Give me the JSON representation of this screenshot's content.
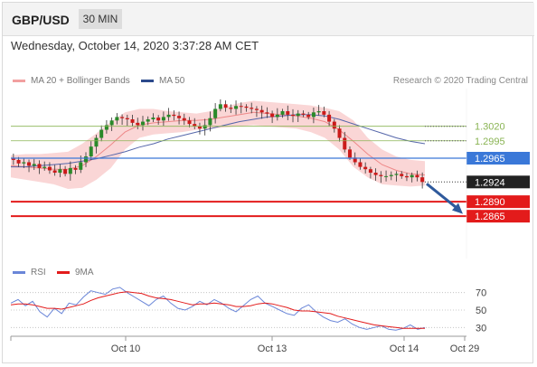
{
  "header": {
    "symbol": "GBP/USD",
    "timeframe": "30 MIN"
  },
  "timestamp": "Wednesday, October 14, 2020 3:37:28 AM CET",
  "legend": {
    "bb_label": "MA 20 + Bollinger Bands",
    "ma50_label": "MA 50",
    "rsi_label": "RSI",
    "rsi_ma_label": "9MA",
    "credit": "Research © 2020 Trading Central"
  },
  "colors": {
    "up": "#2a8a2a",
    "down": "#cc1a1a",
    "band": "#f8c8c8",
    "ma20": "#e88",
    "ma50": "#5566aa",
    "pivot": "#3a78d8",
    "support": "#e31b1b",
    "resistance": "#8ab454",
    "current": "#222222"
  },
  "chart_data": [
    {
      "type": "line",
      "title": "",
      "x_ticks": [
        "Oct 10",
        "Oct 13",
        "Oct 14",
        "Oct 29"
      ],
      "ylim": [
        1.2845,
        1.3085
      ],
      "price_path": [
        1.2962,
        1.2956,
        1.2958,
        1.2952,
        1.2955,
        1.2948,
        1.295,
        1.2944,
        1.294,
        1.2946,
        1.2938,
        1.2948,
        1.2945,
        1.2958,
        1.2968,
        1.2985,
        1.3,
        1.3014,
        1.3022,
        1.303,
        1.3036,
        1.3034,
        1.3032,
        1.3026,
        1.3022,
        1.3028,
        1.3032,
        1.3035,
        1.303,
        1.3036,
        1.304,
        1.3038,
        1.3034,
        1.303,
        1.3024,
        1.302,
        1.3016,
        1.3022,
        1.3034,
        1.305,
        1.3058,
        1.3052,
        1.305,
        1.3055,
        1.3054,
        1.3052,
        1.305,
        1.3048,
        1.3044,
        1.3042,
        1.3036,
        1.304,
        1.3046,
        1.304,
        1.3038,
        1.3042,
        1.304,
        1.3036,
        1.3044,
        1.3046,
        1.304,
        1.3028,
        1.3016,
        1.3,
        1.298,
        1.2966,
        1.2958,
        1.295,
        1.2946,
        1.294,
        1.2936,
        1.2934,
        1.2934,
        1.2936,
        1.2938,
        1.2934,
        1.2932,
        1.2936,
        1.2932,
        1.2924
      ],
      "bb_upper": [
        1.297,
        1.2972,
        1.2972,
        1.2974,
        1.2976,
        1.299,
        1.3008,
        1.3028,
        1.3044,
        1.305,
        1.305,
        1.3046,
        1.3044,
        1.3042,
        1.3046,
        1.3054,
        1.306,
        1.3064,
        1.3062,
        1.306,
        1.3058,
        1.3056,
        1.3052,
        1.3046,
        1.303,
        1.3,
        1.298,
        1.2968,
        1.2962,
        1.296
      ],
      "bb_lower": [
        1.2932,
        1.2928,
        1.2924,
        1.292,
        1.2912,
        1.2914,
        1.2928,
        1.2948,
        1.298,
        1.3,
        1.3006,
        1.3008,
        1.301,
        1.3014,
        1.3016,
        1.3018,
        1.302,
        1.3022,
        1.302,
        1.3018,
        1.3016,
        1.301,
        1.3,
        1.298,
        1.295,
        1.2932,
        1.292,
        1.2918,
        1.2916,
        1.2918
      ],
      "ma20": [
        1.2952,
        1.295,
        1.2948,
        1.2946,
        1.2946,
        1.2952,
        1.2968,
        1.2988,
        1.301,
        1.3022,
        1.3026,
        1.3028,
        1.303,
        1.303,
        1.3032,
        1.3036,
        1.304,
        1.3044,
        1.3042,
        1.304,
        1.3038,
        1.3034,
        1.3028,
        1.3014,
        1.2994,
        1.2972,
        1.2954,
        1.2944,
        1.2938,
        1.2936
      ],
      "ma50": [
        1.295,
        1.295,
        1.2952,
        1.2954,
        1.2956,
        1.296,
        1.2964,
        1.297,
        1.2976,
        1.2984,
        1.299,
        1.2998,
        1.3004,
        1.301,
        1.3016,
        1.3022,
        1.3028,
        1.3032,
        1.3036,
        1.3038,
        1.304,
        1.304,
        1.3038,
        1.3032,
        1.3024,
        1.3016,
        1.3008,
        1.3,
        1.2994,
        1.299
      ],
      "levels": [
        {
          "value": "1.3020",
          "kind": "resistance"
        },
        {
          "value": "1.2995",
          "kind": "resistance"
        },
        {
          "value": "1.2965",
          "kind": "pivot"
        },
        {
          "value": "1.2924",
          "kind": "current"
        },
        {
          "value": "1.2890",
          "kind": "support"
        },
        {
          "value": "1.2865",
          "kind": "support"
        }
      ]
    },
    {
      "type": "line",
      "title": "",
      "y_ticks": [
        "70",
        "50",
        "30"
      ],
      "ylim": [
        20,
        80
      ],
      "rsi": [
        58,
        62,
        55,
        60,
        48,
        42,
        52,
        46,
        58,
        56,
        65,
        72,
        70,
        68,
        74,
        76,
        70,
        65,
        60,
        55,
        62,
        66,
        58,
        52,
        50,
        54,
        60,
        56,
        62,
        58,
        52,
        48,
        55,
        62,
        66,
        58,
        54,
        50,
        46,
        44,
        52,
        56,
        48,
        42,
        38,
        36,
        40,
        34,
        30,
        28,
        30,
        32,
        28,
        27,
        29,
        33,
        28,
        30
      ],
      "rsi_ma": [
        56,
        57,
        57,
        56,
        54,
        52,
        52,
        51,
        53,
        55,
        57,
        61,
        64,
        66,
        68,
        70,
        71,
        70,
        69,
        66,
        64,
        63,
        62,
        60,
        58,
        56,
        57,
        57,
        58,
        57,
        56,
        54,
        54,
        55,
        57,
        58,
        57,
        55,
        53,
        50,
        49,
        49,
        48,
        47,
        46,
        43,
        41,
        39,
        37,
        35,
        33,
        32,
        31,
        30,
        29,
        29,
        29,
        29
      ]
    }
  ]
}
